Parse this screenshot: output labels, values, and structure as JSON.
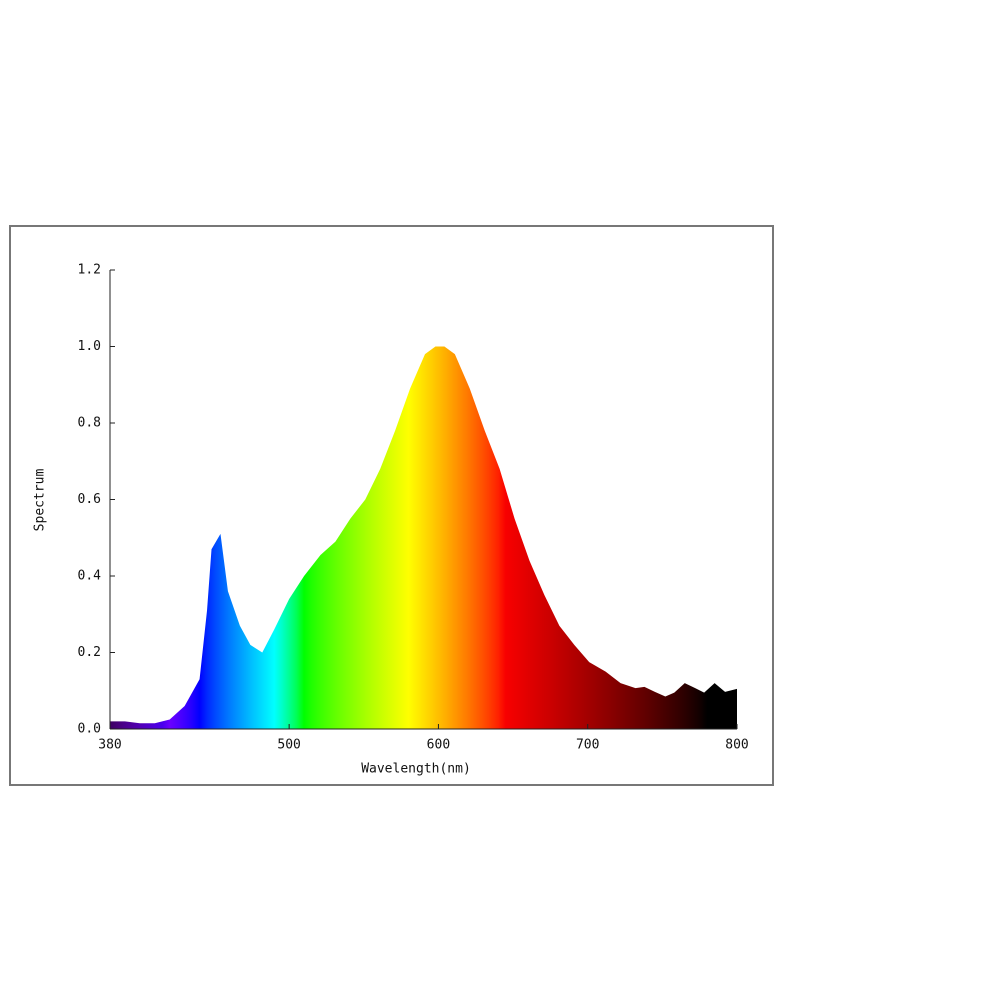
{
  "chart_data": {
    "type": "area",
    "xlabel": "Wavelength(nm)",
    "ylabel": "Spectrum",
    "x": [
      380,
      390,
      400,
      410,
      420,
      430,
      440,
      445,
      448,
      454,
      459,
      467,
      474,
      482,
      490,
      500,
      510,
      521,
      531,
      541,
      551,
      561,
      571,
      581,
      591,
      598,
      604,
      611,
      621,
      631,
      641,
      651,
      661,
      671,
      681,
      691,
      701,
      712,
      722,
      732,
      738,
      745,
      752,
      758,
      765,
      772,
      778,
      785,
      792,
      800
    ],
    "values": [
      0.02,
      0.02,
      0.015,
      0.015,
      0.025,
      0.06,
      0.13,
      0.31,
      0.47,
      0.51,
      0.36,
      0.27,
      0.22,
      0.2,
      0.26,
      0.34,
      0.4,
      0.455,
      0.49,
      0.55,
      0.6,
      0.68,
      0.78,
      0.89,
      0.98,
      1.0,
      1.0,
      0.98,
      0.89,
      0.78,
      0.68,
      0.55,
      0.44,
      0.35,
      0.27,
      0.22,
      0.175,
      0.15,
      0.12,
      0.107,
      0.11,
      0.097,
      0.085,
      0.095,
      0.12,
      0.107,
      0.095,
      0.12,
      0.097,
      0.105
    ],
    "xlim": [
      380,
      800
    ],
    "xticks": [
      380,
      500,
      600,
      700,
      800
    ],
    "ylim": [
      0,
      1.2
    ],
    "yticks": [
      {
        "value": 0,
        "label": "0.0"
      },
      0.2,
      0.4,
      0.6,
      0.8,
      {
        "value": 1,
        "label": "1.0"
      },
      1.2
    ]
  }
}
